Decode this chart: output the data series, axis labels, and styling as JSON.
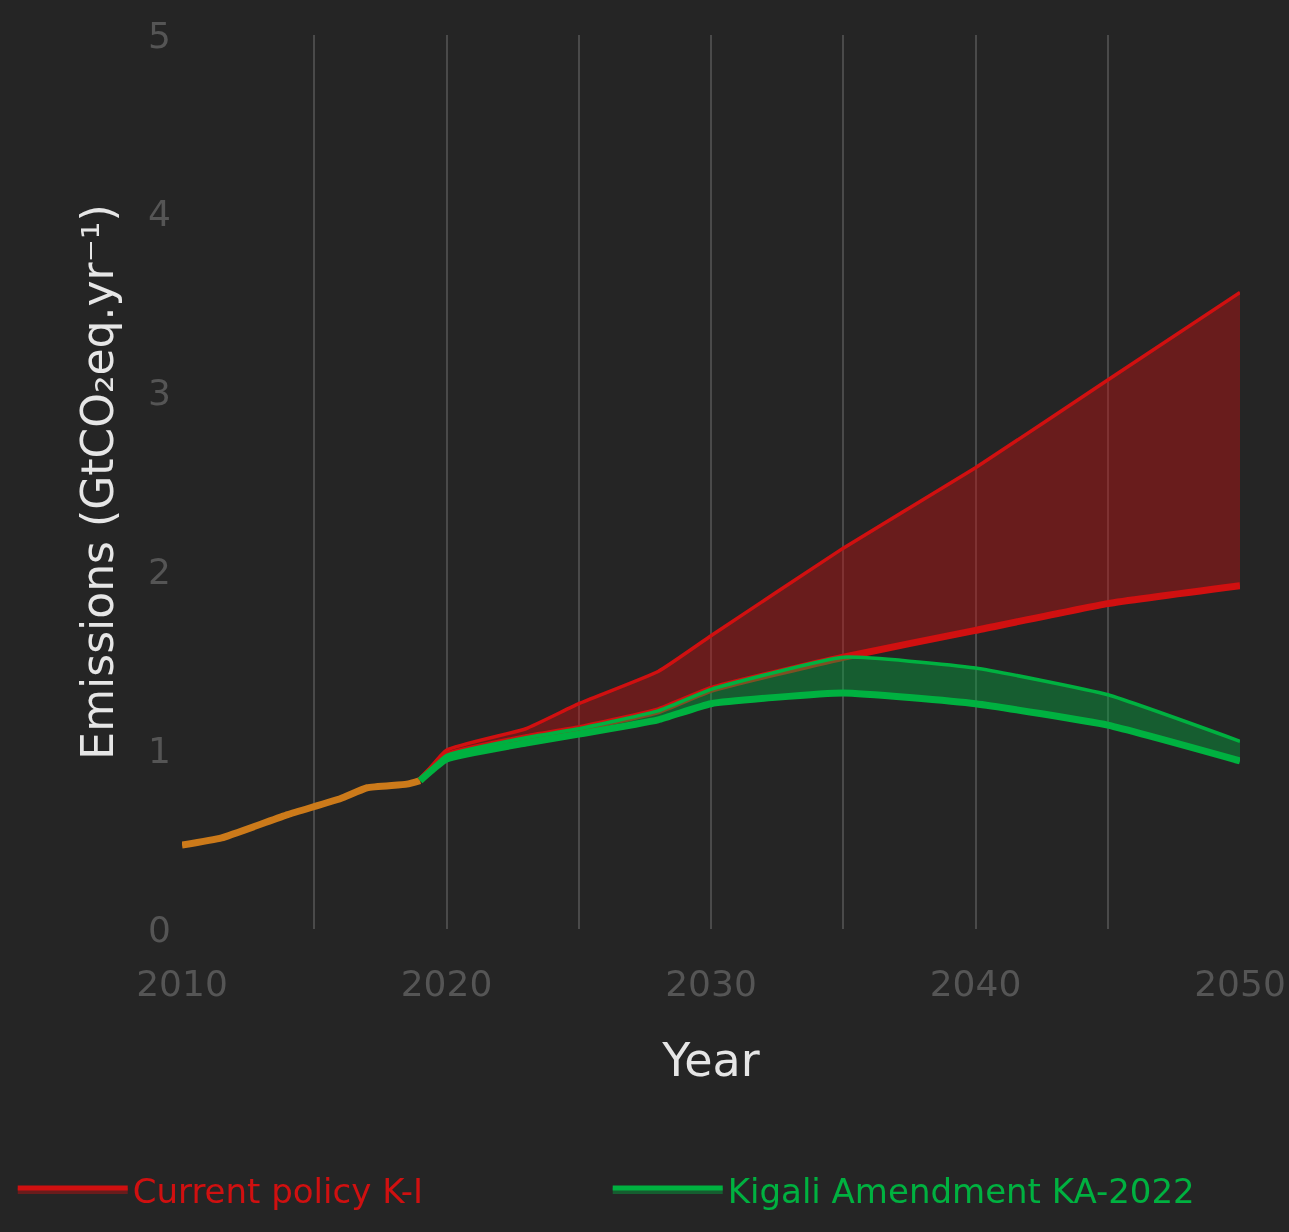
{
  "chart_data": {
    "type": "area",
    "xlabel": "Year",
    "ylabel": "Emissions (GtCO₂eq.yr⁻¹)",
    "x": [
      2010,
      2011.5,
      2014,
      2016,
      2017,
      2018.5,
      2019,
      2020,
      2023,
      2025,
      2028,
      2030,
      2035,
      2040,
      2045,
      2050
    ],
    "series": [
      {
        "type": "line",
        "color": "#cc7a1a",
        "values": [
          0.47,
          0.51,
          0.64,
          0.73,
          0.79,
          0.81,
          0.83,
          null,
          null,
          null,
          null,
          null,
          null,
          null,
          null,
          null
        ]
      },
      {
        "type": "line",
        "color": "#d01010",
        "values": [
          null,
          null,
          null,
          null,
          null,
          null,
          0.83,
          0.97,
          1.07,
          1.12,
          1.22,
          1.34,
          1.52,
          1.67,
          1.82,
          1.92
        ]
      },
      {
        "name": "Current policy K-I",
        "color": "#d01010",
        "values": [
          null,
          null,
          null,
          null,
          null,
          null,
          0.83,
          1.0,
          1.12,
          1.26,
          1.44,
          1.64,
          2.13,
          2.58,
          3.07,
          3.56
        ]
      },
      {
        "type": "line",
        "color": "#00b140",
        "values": [
          null,
          null,
          null,
          null,
          null,
          null,
          0.83,
          0.95,
          1.04,
          1.09,
          1.17,
          1.26,
          1.32,
          1.26,
          1.14,
          0.94
        ]
      },
      {
        "name": "Kigali Amendment KA-2022",
        "color": "#00b140",
        "values": [
          null,
          null,
          null,
          null,
          null,
          null,
          0.83,
          0.97,
          1.07,
          1.12,
          1.22,
          1.34,
          1.52,
          1.46,
          1.31,
          1.05
        ]
      }
    ],
    "xlim": [
      2010,
      2050
    ],
    "xticks": [
      2010,
      {
        "value": 2015,
        "label": null
      },
      2020,
      {
        "value": 2025,
        "label": null
      },
      2030,
      {
        "value": 2035,
        "label": null
      },
      2040,
      {
        "value": 2045,
        "label": null
      },
      2050
    ],
    "ylim": [
      0,
      5
    ],
    "yticks": [
      0,
      1,
      2,
      3,
      4,
      5
    ],
    "grid": "x",
    "legend": "bottom",
    "line_style": "solid"
  }
}
